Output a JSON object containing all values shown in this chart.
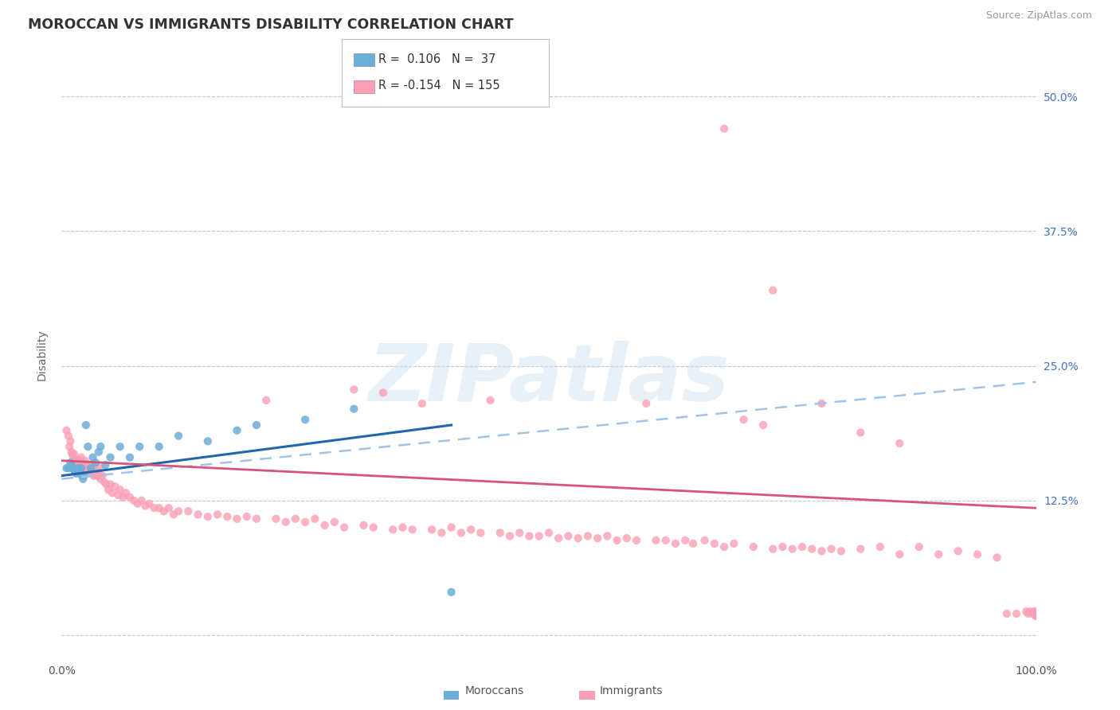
{
  "title": "MOROCCAN VS IMMIGRANTS DISABILITY CORRELATION CHART",
  "source": "Source: ZipAtlas.com",
  "ylabel": "Disability",
  "legend_blue_r": "0.106",
  "legend_blue_n": "37",
  "legend_pink_r": "-0.154",
  "legend_pink_n": "155",
  "xlim": [
    0.0,
    1.0
  ],
  "ylim": [
    -0.02,
    0.54
  ],
  "yticks": [
    0.0,
    0.125,
    0.25,
    0.375,
    0.5
  ],
  "ytick_labels": [
    "",
    "12.5%",
    "25.0%",
    "37.5%",
    "50.0%"
  ],
  "blue_color": "#6baed6",
  "pink_color": "#fa9fb5",
  "blue_line_color": "#2166ac",
  "pink_line_color": "#d6547c",
  "dashed_line_color": "#a0c4e8",
  "background_color": "#ffffff",
  "grid_color": "#c8c8c8",
  "watermark": "ZIPatlas",
  "moroccans_x": [
    0.005,
    0.007,
    0.009,
    0.01,
    0.011,
    0.012,
    0.013,
    0.014,
    0.015,
    0.016,
    0.017,
    0.018,
    0.019,
    0.02,
    0.021,
    0.022,
    0.023,
    0.025,
    0.027,
    0.03,
    0.032,
    0.035,
    0.038,
    0.04,
    0.045,
    0.05,
    0.06,
    0.07,
    0.08,
    0.1,
    0.12,
    0.15,
    0.18,
    0.2,
    0.25,
    0.3,
    0.4
  ],
  "moroccans_y": [
    0.155,
    0.155,
    0.16,
    0.158,
    0.155,
    0.155,
    0.153,
    0.152,
    0.15,
    0.152,
    0.155,
    0.153,
    0.15,
    0.155,
    0.148,
    0.145,
    0.148,
    0.195,
    0.175,
    0.155,
    0.165,
    0.16,
    0.17,
    0.175,
    0.158,
    0.165,
    0.175,
    0.165,
    0.175,
    0.175,
    0.185,
    0.18,
    0.19,
    0.195,
    0.2,
    0.21,
    0.04
  ],
  "immigrants_x": [
    0.005,
    0.007,
    0.008,
    0.009,
    0.01,
    0.011,
    0.012,
    0.013,
    0.014,
    0.015,
    0.016,
    0.017,
    0.018,
    0.019,
    0.02,
    0.021,
    0.022,
    0.023,
    0.024,
    0.025,
    0.026,
    0.027,
    0.028,
    0.029,
    0.03,
    0.031,
    0.032,
    0.033,
    0.034,
    0.035,
    0.036,
    0.037,
    0.038,
    0.039,
    0.04,
    0.042,
    0.044,
    0.046,
    0.048,
    0.05,
    0.052,
    0.055,
    0.058,
    0.06,
    0.063,
    0.066,
    0.07,
    0.074,
    0.078,
    0.082,
    0.086,
    0.09,
    0.095,
    0.1,
    0.105,
    0.11,
    0.115,
    0.12,
    0.13,
    0.14,
    0.15,
    0.16,
    0.17,
    0.18,
    0.19,
    0.2,
    0.21,
    0.22,
    0.23,
    0.24,
    0.25,
    0.26,
    0.27,
    0.28,
    0.29,
    0.3,
    0.31,
    0.32,
    0.33,
    0.34,
    0.35,
    0.36,
    0.37,
    0.38,
    0.39,
    0.4,
    0.41,
    0.42,
    0.43,
    0.44,
    0.45,
    0.46,
    0.47,
    0.48,
    0.49,
    0.5,
    0.51,
    0.52,
    0.53,
    0.54,
    0.55,
    0.56,
    0.57,
    0.58,
    0.59,
    0.6,
    0.61,
    0.62,
    0.63,
    0.64,
    0.648,
    0.66,
    0.67,
    0.68,
    0.69,
    0.7,
    0.71,
    0.72,
    0.73,
    0.74,
    0.75,
    0.76,
    0.77,
    0.78,
    0.79,
    0.8,
    0.82,
    0.84,
    0.86,
    0.88,
    0.9,
    0.92,
    0.94,
    0.96,
    0.97,
    0.98,
    0.99,
    0.992,
    0.994,
    0.996,
    0.998,
    1.0,
    1.0,
    1.0,
    1.0,
    1.0,
    1.0,
    1.0,
    1.0,
    1.0,
    0.68,
    0.73,
    0.78,
    0.82,
    0.86
  ],
  "immigrants_y": [
    0.19,
    0.185,
    0.175,
    0.18,
    0.17,
    0.168,
    0.165,
    0.168,
    0.162,
    0.16,
    0.162,
    0.163,
    0.16,
    0.162,
    0.165,
    0.16,
    0.155,
    0.158,
    0.162,
    0.155,
    0.158,
    0.15,
    0.158,
    0.15,
    0.155,
    0.152,
    0.158,
    0.148,
    0.152,
    0.15,
    0.148,
    0.152,
    0.148,
    0.155,
    0.145,
    0.148,
    0.142,
    0.14,
    0.135,
    0.14,
    0.132,
    0.138,
    0.13,
    0.135,
    0.128,
    0.132,
    0.128,
    0.125,
    0.122,
    0.125,
    0.12,
    0.122,
    0.118,
    0.118,
    0.115,
    0.118,
    0.112,
    0.115,
    0.115,
    0.112,
    0.11,
    0.112,
    0.11,
    0.108,
    0.11,
    0.108,
    0.218,
    0.108,
    0.105,
    0.108,
    0.105,
    0.108,
    0.102,
    0.105,
    0.1,
    0.228,
    0.102,
    0.1,
    0.225,
    0.098,
    0.1,
    0.098,
    0.215,
    0.098,
    0.095,
    0.1,
    0.095,
    0.098,
    0.095,
    0.218,
    0.095,
    0.092,
    0.095,
    0.092,
    0.092,
    0.095,
    0.09,
    0.092,
    0.09,
    0.092,
    0.09,
    0.092,
    0.088,
    0.09,
    0.088,
    0.215,
    0.088,
    0.088,
    0.085,
    0.088,
    0.085,
    0.088,
    0.085,
    0.082,
    0.085,
    0.2,
    0.082,
    0.195,
    0.08,
    0.082,
    0.08,
    0.082,
    0.08,
    0.078,
    0.08,
    0.078,
    0.08,
    0.082,
    0.075,
    0.082,
    0.075,
    0.078,
    0.075,
    0.072,
    0.02,
    0.02,
    0.022,
    0.02,
    0.022,
    0.02,
    0.022,
    0.02,
    0.018,
    0.02,
    0.018,
    0.02,
    0.018,
    0.022,
    0.02,
    0.018,
    0.47,
    0.32,
    0.215,
    0.188,
    0.178
  ],
  "blue_trend": [
    0.0,
    0.4,
    0.148,
    0.195
  ],
  "pink_trend": [
    0.0,
    1.0,
    0.162,
    0.118
  ],
  "dashed_trend": [
    0.0,
    1.0,
    0.145,
    0.235
  ]
}
